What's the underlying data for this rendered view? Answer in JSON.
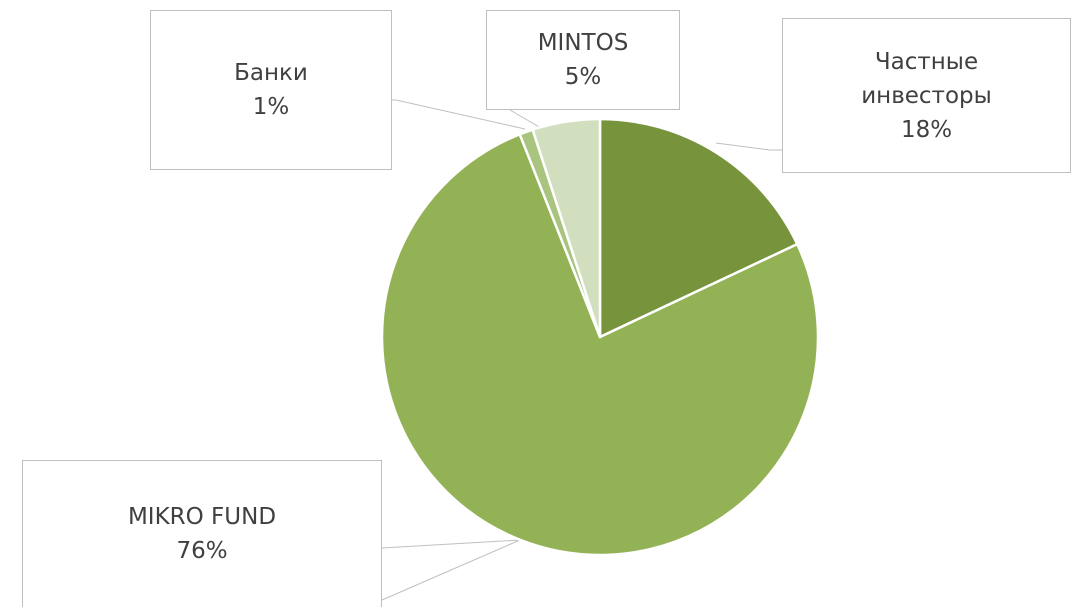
{
  "chart_data": {
    "type": "pie",
    "categories": [
      "Частные инвесторы",
      "MIKRO FUND",
      "Банки",
      "MINTOS"
    ],
    "values": [
      18,
      76,
      1,
      5
    ],
    "value_labels": [
      "18%",
      "76%",
      "1%",
      "5%"
    ],
    "colors": [
      "#77933c",
      "#93b256",
      "#a9c47f",
      "#d1dfbe"
    ]
  }
}
